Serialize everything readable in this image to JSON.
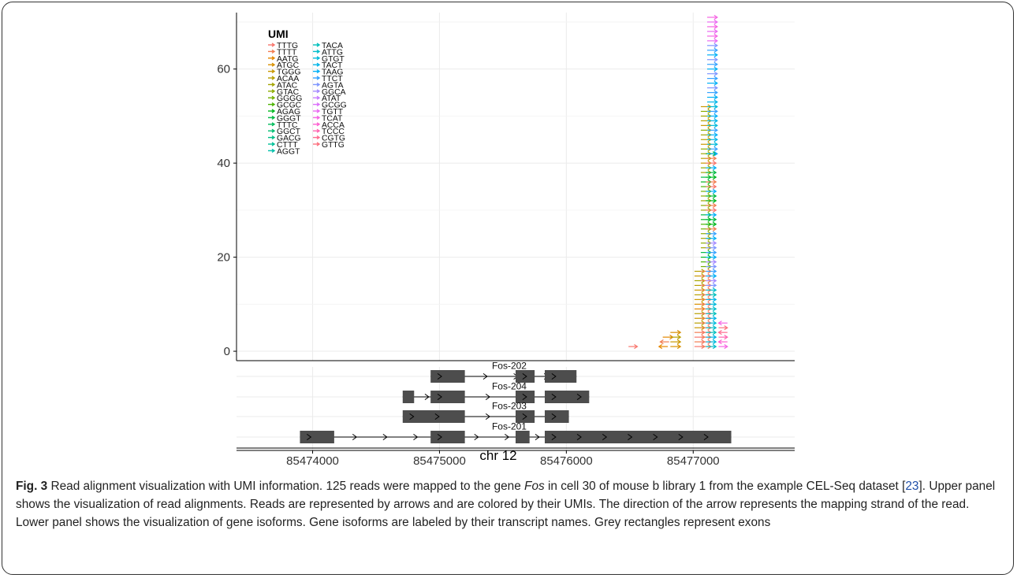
{
  "figure": {
    "caption": {
      "label": "Fig. 3",
      "text_part1": " Read alignment visualization with UMI information. 125 reads were mapped to the gene ",
      "gene_italic": "Fos",
      "text_part2": " in cell 30 of mouse b library 1 from the example CEL-Seq dataset [",
      "ref": "23",
      "text_part3": "]. Upper panel shows the visualization of read alignments. Reads are represented by arrows and are colored by their UMIs. The direction of the arrow represents the mapping strand of the read. Lower panel shows the visualization of gene isoforms. Gene isoforms are labeled by their transcript names. Grey rectangles represent exons"
    }
  },
  "colors": {
    "exon": "#4d4d4d",
    "grid": "#ebebeb",
    "axis": "#000000"
  },
  "chart_data": {
    "type": "scatter",
    "title": "",
    "xlabel": "chr 12",
    "ylabel": "",
    "xlim": [
      85473400,
      85477800
    ],
    "ylim": [
      -2,
      72
    ],
    "xticks": [
      85474000,
      85475000,
      85476000,
      85477000
    ],
    "xtick_labels": [
      "85474000",
      "85475000",
      "85476000",
      "85477000"
    ],
    "yticks": [
      0,
      20,
      40,
      60
    ],
    "ytick_labels": [
      "0",
      "20",
      "40",
      "60"
    ],
    "grid": true,
    "legend": {
      "title": "UMI",
      "placement": "top-left",
      "entries": [
        {
          "label": "TTTG",
          "color": "#F8766D"
        },
        {
          "label": "TTTT",
          "color": "#F27D52"
        },
        {
          "label": "AATG",
          "color": "#E58700"
        },
        {
          "label": "ATGC",
          "color": "#D89000"
        },
        {
          "label": "TGGG",
          "color": "#C99800"
        },
        {
          "label": "ACAA",
          "color": "#B79F00"
        },
        {
          "label": "ATAC",
          "color": "#A3A500"
        },
        {
          "label": "GTAC",
          "color": "#8EAB00"
        },
        {
          "label": "GGGG",
          "color": "#73B000"
        },
        {
          "label": "GCGC",
          "color": "#4CB400"
        },
        {
          "label": "AGAG",
          "color": "#00B81F"
        },
        {
          "label": "GGGT",
          "color": "#00BA42"
        },
        {
          "label": "TTTC",
          "color": "#00BC5C"
        },
        {
          "label": "GGCT",
          "color": "#00BE72"
        },
        {
          "label": "GACG",
          "color": "#00BF86"
        },
        {
          "label": "CTTT",
          "color": "#00C098"
        },
        {
          "label": "AGGT",
          "color": "#00C0AB"
        },
        {
          "label": "TACA",
          "color": "#00BFBC"
        },
        {
          "label": "ATTG",
          "color": "#00BDCC"
        },
        {
          "label": "GTGT",
          "color": "#00BADB"
        },
        {
          "label": "TACT",
          "color": "#00B5E8"
        },
        {
          "label": "TAAG",
          "color": "#00B0F6"
        },
        {
          "label": "TTCT",
          "color": "#35A2FF"
        },
        {
          "label": "AGTA",
          "color": "#7F96FF"
        },
        {
          "label": "GGCA",
          "color": "#A58AFF"
        },
        {
          "label": "ATAT",
          "color": "#C77CFF"
        },
        {
          "label": "GCGG",
          "color": "#DC71FA"
        },
        {
          "label": "TGTT",
          "color": "#EA6AF1"
        },
        {
          "label": "TCAT",
          "color": "#F564E3"
        },
        {
          "label": "ACCA",
          "color": "#FD61D1"
        },
        {
          "label": "TCCC",
          "color": "#FF64B0"
        },
        {
          "label": "CGTG",
          "color": "#FF6C91"
        },
        {
          "label": "GTTG",
          "color": "#FC717F"
        }
      ]
    },
    "reads": [
      {
        "start": 85476490,
        "end": 85476560,
        "y": 1,
        "strand": "+",
        "umi": "TTTG"
      },
      {
        "start": 85476730,
        "end": 85476800,
        "y": 1,
        "strand": "-",
        "umi": "AATG"
      },
      {
        "start": 85476740,
        "end": 85476810,
        "y": 2,
        "strand": "-",
        "umi": "TTTT"
      },
      {
        "start": 85476760,
        "end": 85476840,
        "y": 3,
        "strand": "+",
        "umi": "AATG"
      },
      {
        "start": 85476820,
        "end": 85476900,
        "y": 1,
        "strand": "+",
        "umi": "ATGC"
      },
      {
        "start": 85476820,
        "end": 85476900,
        "y": 2,
        "strand": "+",
        "umi": "TGGG"
      },
      {
        "start": 85476820,
        "end": 85476900,
        "y": 3,
        "strand": "+",
        "umi": "ACAA"
      },
      {
        "start": 85476820,
        "end": 85476900,
        "y": 4,
        "strand": "+",
        "umi": "ATGC"
      }
    ],
    "isoforms": [
      {
        "name": "Fos-202",
        "exons": [
          [
            85474930,
            85475200
          ],
          [
            85475600,
            85475750
          ],
          [
            85475830,
            85476080
          ]
        ],
        "span": [
          85474930,
          85476080
        ]
      },
      {
        "name": "Fos-204",
        "exons": [
          [
            85474710,
            85474800
          ],
          [
            85474930,
            85475200
          ],
          [
            85475600,
            85475750
          ],
          [
            85475830,
            85476180
          ]
        ],
        "span": [
          85474710,
          85476180
        ]
      },
      {
        "name": "Fos-203",
        "exons": [
          [
            85474710,
            85475200
          ],
          [
            85475600,
            85475750
          ],
          [
            85475830,
            85476020
          ]
        ],
        "span": [
          85474710,
          85476020
        ]
      },
      {
        "name": "Fos-201",
        "exons": [
          [
            85473900,
            85474170
          ],
          [
            85474930,
            85475200
          ],
          [
            85475600,
            85475710
          ],
          [
            85475830,
            85477300
          ]
        ],
        "span": [
          85473900,
          85477300
        ]
      }
    ]
  }
}
